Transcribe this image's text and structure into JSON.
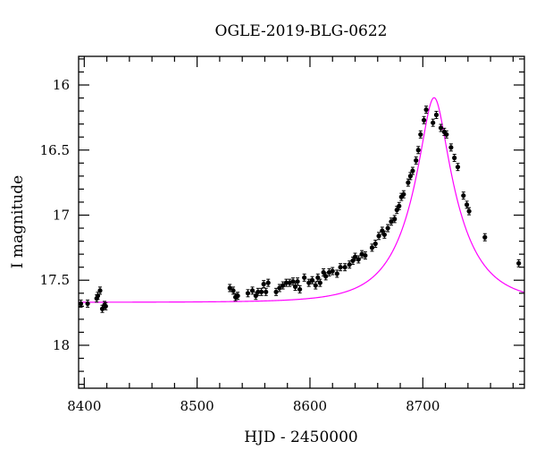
{
  "chart_data": {
    "type": "scatter",
    "title": "OGLE-2019-BLG-0622",
    "xlabel": "HJD - 2450000",
    "ylabel": "I magnitude",
    "xlim": [
      8395,
      8790
    ],
    "ylim": [
      18.33,
      15.78
    ],
    "y_inverted": true,
    "x_ticks": [
      8400,
      8500,
      8600,
      8700
    ],
    "y_ticks": [
      16,
      16.5,
      17,
      17.5,
      18
    ],
    "x_tick_labels": [
      "8400",
      "8500",
      "8600",
      "8700"
    ],
    "y_tick_labels": [
      "16",
      "16.5",
      "17",
      "17.5",
      "18"
    ],
    "grid": false,
    "colors": {
      "data": "#000000",
      "model": "#ff00ff"
    },
    "series": [
      {
        "kind": "points",
        "points": [
          [
            8397,
            17.68
          ],
          [
            8403,
            17.68
          ],
          [
            8411,
            17.64
          ],
          [
            8412,
            17.62
          ],
          [
            8414,
            17.58
          ],
          [
            8416,
            17.72
          ],
          [
            8418,
            17.69
          ],
          [
            8419,
            17.7
          ],
          [
            8529,
            17.56
          ],
          [
            8532,
            17.58
          ],
          [
            8534,
            17.63
          ],
          [
            8536,
            17.62
          ],
          [
            8545,
            17.6
          ],
          [
            8549,
            17.58
          ],
          [
            8552,
            17.62
          ],
          [
            8554,
            17.59
          ],
          [
            8557,
            17.59
          ],
          [
            8559,
            17.53
          ],
          [
            8561,
            17.59
          ],
          [
            8563,
            17.52
          ],
          [
            8570,
            17.59
          ],
          [
            8573,
            17.56
          ],
          [
            8576,
            17.54
          ],
          [
            8579,
            17.52
          ],
          [
            8582,
            17.52
          ],
          [
            8585,
            17.51
          ],
          [
            8587,
            17.55
          ],
          [
            8589,
            17.51
          ],
          [
            8591,
            17.57
          ],
          [
            8595,
            17.48
          ],
          [
            8599,
            17.52
          ],
          [
            8602,
            17.5
          ],
          [
            8605,
            17.54
          ],
          [
            8607,
            17.48
          ],
          [
            8609,
            17.52
          ],
          [
            8612,
            17.44
          ],
          [
            8614,
            17.47
          ],
          [
            8617,
            17.44
          ],
          [
            8620,
            17.43
          ],
          [
            8624,
            17.45
          ],
          [
            8627,
            17.4
          ],
          [
            8631,
            17.4
          ],
          [
            8635,
            17.38
          ],
          [
            8638,
            17.35
          ],
          [
            8640,
            17.32
          ],
          [
            8643,
            17.34
          ],
          [
            8646,
            17.3
          ],
          [
            8649,
            17.31
          ],
          [
            8655,
            17.25
          ],
          [
            8658,
            17.22
          ],
          [
            8661,
            17.16
          ],
          [
            8664,
            17.12
          ],
          [
            8666,
            17.15
          ],
          [
            8669,
            17.1
          ],
          [
            8672,
            17.05
          ],
          [
            8675,
            17.03
          ],
          [
            8677,
            16.96
          ],
          [
            8679,
            16.93
          ],
          [
            8681,
            16.86
          ],
          [
            8683,
            16.84
          ],
          [
            8687,
            16.75
          ],
          [
            8689,
            16.7
          ],
          [
            8691,
            16.66
          ],
          [
            8694,
            16.58
          ],
          [
            8696,
            16.5
          ],
          [
            8698,
            16.38
          ],
          [
            8701,
            16.27
          ],
          [
            8703,
            16.19
          ],
          [
            8709,
            16.29
          ],
          [
            8712,
            16.23
          ],
          [
            8716,
            16.33
          ],
          [
            8719,
            16.36
          ],
          [
            8721,
            16.38
          ],
          [
            8725,
            16.48
          ],
          [
            8728,
            16.56
          ],
          [
            8731,
            16.63
          ],
          [
            8736,
            16.85
          ],
          [
            8739,
            16.92
          ],
          [
            8741,
            16.97
          ],
          [
            8755,
            17.17
          ],
          [
            8785,
            17.37
          ]
        ]
      },
      {
        "kind": "model-curve",
        "model": {
          "baseline": 17.67,
          "t0": 8710,
          "u0": 0.24,
          "tE": 43
        }
      }
    ]
  }
}
